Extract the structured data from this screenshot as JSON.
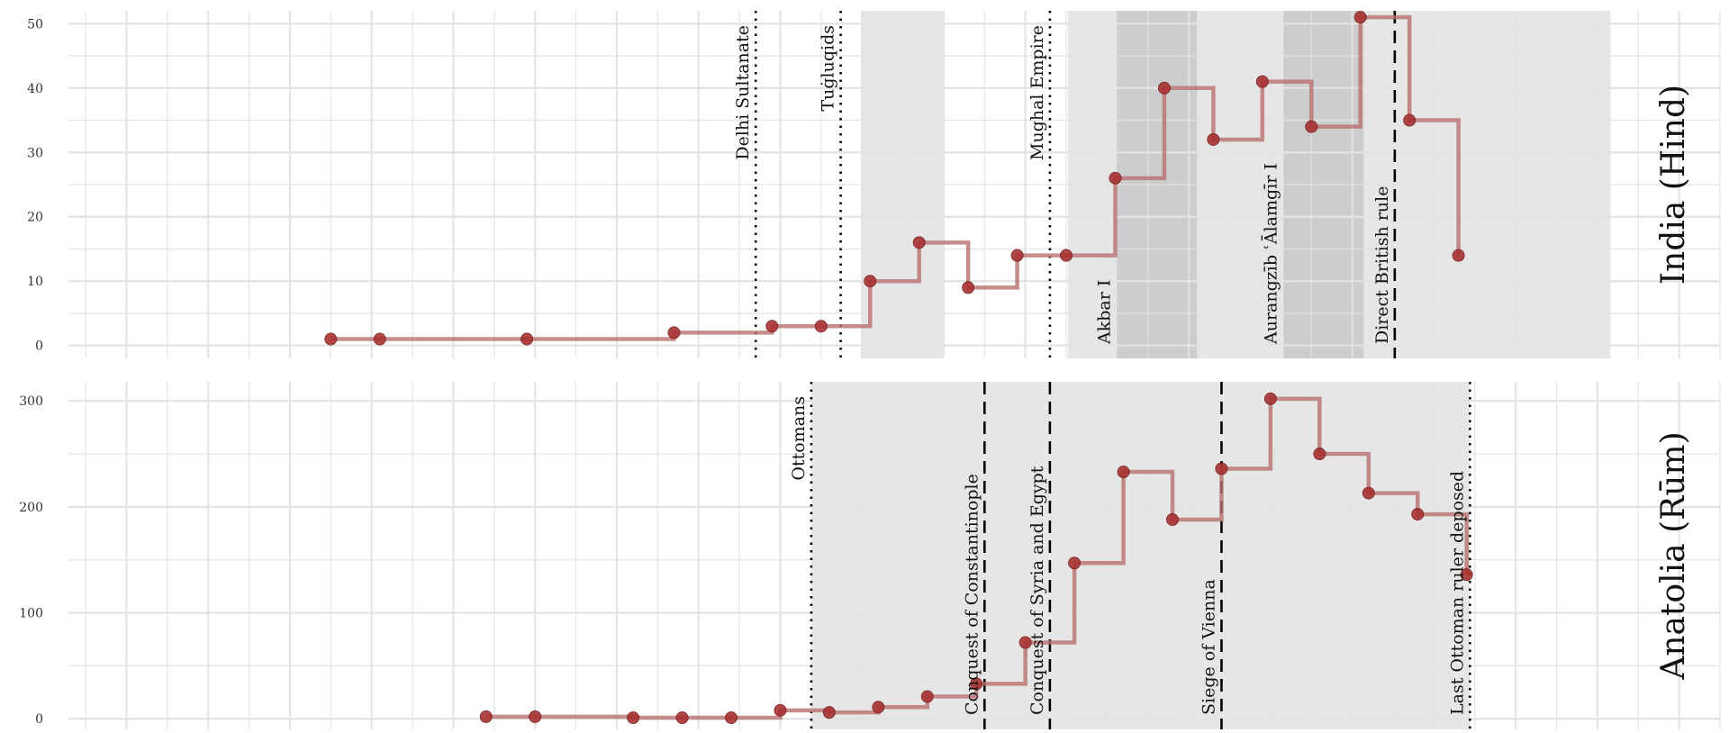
{
  "colors": {
    "line": "#b97070",
    "point": "#a83232",
    "point_stroke": "#7a1f1f",
    "shade_light": "#e6e6e6",
    "shade_dark": "#cdcdcd",
    "grid": "#e3e3e3"
  },
  "chart_data": [
    {
      "type": "line",
      "strip_label": "India (Hind)",
      "xlim": [
        920,
        1925
      ],
      "ylim": [
        -2,
        52
      ],
      "yticks": [
        0,
        10,
        20,
        30,
        40,
        50
      ],
      "tick_labels": [
        "0",
        "10",
        "20",
        "30",
        "40",
        "50"
      ],
      "grid": true,
      "step": true,
      "points": [
        {
          "x": 1075,
          "y": 1
        },
        {
          "x": 1105,
          "y": 1
        },
        {
          "x": 1195,
          "y": 1
        },
        {
          "x": 1285,
          "y": 2
        },
        {
          "x": 1345,
          "y": 3
        },
        {
          "x": 1375,
          "y": 3
        },
        {
          "x": 1405,
          "y": 10
        },
        {
          "x": 1435,
          "y": 16
        },
        {
          "x": 1465,
          "y": 9
        },
        {
          "x": 1495,
          "y": 14
        },
        {
          "x": 1525,
          "y": 14
        },
        {
          "x": 1555,
          "y": 26
        },
        {
          "x": 1585,
          "y": 40
        },
        {
          "x": 1615,
          "y": 32
        },
        {
          "x": 1645,
          "y": 41
        },
        {
          "x": 1675,
          "y": 34
        },
        {
          "x": 1705,
          "y": 51
        },
        {
          "x": 1735,
          "y": 35
        },
        {
          "x": 1765,
          "y": 14
        }
      ],
      "shaded_periods": [
        {
          "start": 1400,
          "end": 1450,
          "tone": "light"
        },
        {
          "start": 1526,
          "end": 1858,
          "tone": "light"
        },
        {
          "start": 1556,
          "end": 1605,
          "tone": "dark"
        },
        {
          "start": 1658,
          "end": 1707,
          "tone": "dark"
        }
      ],
      "events": [
        {
          "x": 1335,
          "label": "Delhi Sultanate",
          "style": "dotted",
          "label_pos": "top"
        },
        {
          "x": 1387,
          "label": "Tuġluqids",
          "style": "dotted",
          "label_pos": "top"
        },
        {
          "x": 1515,
          "label": "Mughal Empire",
          "style": "dotted",
          "label_pos": "top"
        },
        {
          "x": 1556,
          "label": "Akbar I",
          "style": "none",
          "label_pos": "bottom"
        },
        {
          "x": 1658,
          "label": "Aurangzīb ʿĀlamgīr I",
          "style": "none",
          "label_pos": "bottom"
        },
        {
          "x": 1726,
          "label": "Direct British rule",
          "style": "dashed",
          "label_pos": "bottom"
        }
      ]
    },
    {
      "type": "line",
      "strip_label": "Anatolia (Rūm)",
      "xlim": [
        920,
        1925
      ],
      "ylim": [
        -10,
        318
      ],
      "yticks": [
        0,
        100,
        200,
        300
      ],
      "tick_labels": [
        "0",
        "100",
        "200",
        "300"
      ],
      "grid": true,
      "step": true,
      "points": [
        {
          "x": 1170,
          "y": 2
        },
        {
          "x": 1200,
          "y": 2
        },
        {
          "x": 1260,
          "y": 1
        },
        {
          "x": 1290,
          "y": 1
        },
        {
          "x": 1320,
          "y": 1
        },
        {
          "x": 1350,
          "y": 8
        },
        {
          "x": 1380,
          "y": 6
        },
        {
          "x": 1410,
          "y": 11
        },
        {
          "x": 1440,
          "y": 21
        },
        {
          "x": 1470,
          "y": 33
        },
        {
          "x": 1500,
          "y": 72
        },
        {
          "x": 1530,
          "y": 147
        },
        {
          "x": 1560,
          "y": 233
        },
        {
          "x": 1590,
          "y": 188
        },
        {
          "x": 1620,
          "y": 236
        },
        {
          "x": 1650,
          "y": 302
        },
        {
          "x": 1680,
          "y": 250
        },
        {
          "x": 1710,
          "y": 213
        },
        {
          "x": 1740,
          "y": 193
        },
        {
          "x": 1770,
          "y": 136
        }
      ],
      "shaded_periods": [
        {
          "start": 1369,
          "end": 1772,
          "tone": "light"
        }
      ],
      "events": [
        {
          "x": 1369,
          "label": "Ottomans",
          "style": "dotted",
          "label_pos": "top"
        },
        {
          "x": 1475,
          "label": "Conquest of Constantinople",
          "style": "dashed",
          "label_pos": "bottom"
        },
        {
          "x": 1515,
          "label": "Conquest of Syria and Egypt",
          "style": "dashed",
          "label_pos": "bottom"
        },
        {
          "x": 1620,
          "label": "Siege of Vienna",
          "style": "dashed",
          "label_pos": "bottom"
        },
        {
          "x": 1772,
          "label": "Last Ottoman ruler deposed",
          "style": "dotted",
          "label_pos": "bottom"
        }
      ]
    }
  ]
}
